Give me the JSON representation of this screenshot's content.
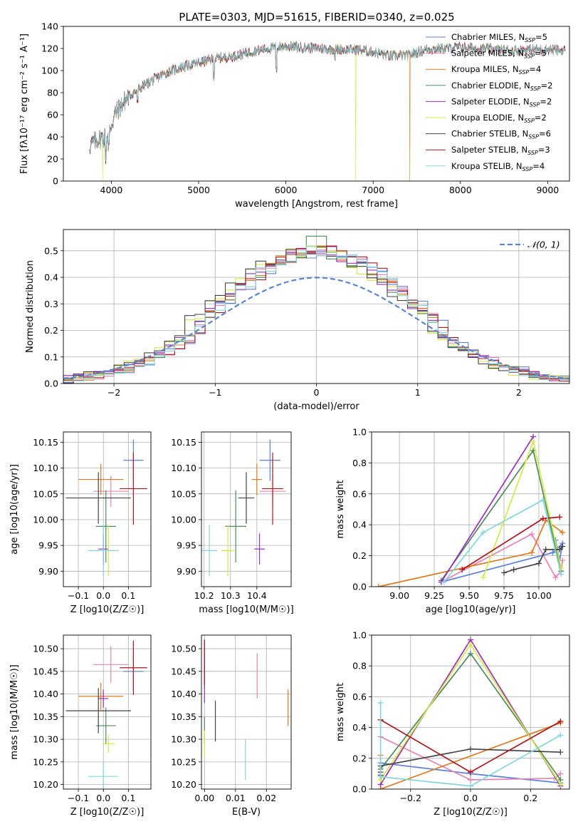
{
  "figure_title": "PLATE=0303, MJD=51615, FIBERID=0340, z=0.025",
  "colors": {
    "Chabrier MILES": "#5b7fdc",
    "Salpeter MILES": "#e882b4",
    "Kroupa MILES": "#e0781c",
    "Chabrier ELODIE": "#4e8a5b",
    "Salpeter ELODIE": "#9a2fc0",
    "Kroupa ELODIE": "#d2ea44",
    "Chabrier STELIB": "#444444",
    "Salpeter STELIB": "#b0151d",
    "Kroupa STELIB": "#83d6dc"
  },
  "chart_data": [
    {
      "id": "spectrum",
      "type": "line",
      "title": "",
      "xlabel": "wavelength [Angstrom, rest frame]",
      "ylabel": "Flux [fλ10⁻¹⁷ erg cm⁻² s⁻¹ A⁻¹]",
      "xlim": [
        3450,
        9250
      ],
      "ylim": [
        0,
        140
      ],
      "xticks": [
        4000,
        5000,
        6000,
        7000,
        8000,
        9000
      ],
      "yticks": [
        0,
        20,
        40,
        60,
        80,
        100,
        120,
        140
      ],
      "grid": false,
      "legend_position": "upper-right",
      "legend": [
        "Chabrier MILES, N_SSP=5",
        "Salpeter MILES, N_SSP=5",
        "Kroupa MILES, N_SSP=4",
        "Chabrier ELODIE, N_SSP=2",
        "Salpeter ELODIE, N_SSP=2",
        "Kroupa ELODIE, N_SSP=2",
        "Chabrier STELIB, N_SSP=6",
        "Salpeter STELIB, N_SSP=3",
        "Kroupa STELIB, N_SSP=4"
      ],
      "continuum": {
        "x": [
          3750,
          3850,
          3950,
          4050,
          4200,
          4400,
          4600,
          4800,
          5000,
          5200,
          5400,
          5600,
          5800,
          6000,
          6200,
          6400,
          6600,
          6800,
          7000,
          7200,
          7400,
          7600,
          7800,
          8000,
          8200,
          8400,
          8600,
          8800,
          9000,
          9200
        ],
        "y": [
          32,
          38,
          40,
          62,
          77,
          88,
          97,
          103,
          107,
          111,
          113,
          117,
          120,
          122,
          121,
          120,
          119,
          119,
          117,
          113,
          114,
          119,
          120,
          121,
          120,
          119,
          118,
          119,
          119,
          118
        ]
      },
      "glitches": [
        {
          "series": "Kroupa ELODIE",
          "x": 3900,
          "y_min": 0
        },
        {
          "series": "Kroupa ELODIE",
          "x": 6800,
          "y_min": 0
        },
        {
          "series": "Kroupa MILES",
          "x": 7420,
          "y_min": 0
        }
      ]
    },
    {
      "id": "residuals",
      "type": "histogram",
      "xlabel": "(data-model)/error",
      "ylabel": "Normed distribution",
      "xlim": [
        -2.5,
        2.5
      ],
      "ylim": [
        0,
        0.58
      ],
      "xticks": [
        -2,
        -1,
        0,
        1,
        2
      ],
      "yticks": [
        0.0,
        0.1,
        0.2,
        0.3,
        0.4,
        0.5
      ],
      "grid": true,
      "legend": "𝒩(0, 1)",
      "legend_position": "upper-right",
      "reference": {
        "name": "N(0,1)",
        "mean": 0,
        "sd": 1,
        "style": "dashed",
        "color": "#5a86cc"
      },
      "bin_width": 0.1,
      "bin_start": -2.5
    },
    {
      "id": "age_vs_Z",
      "type": "errorbar",
      "xlabel": "Z [log10(Z/Z☉)]",
      "ylabel": "age  [log10(age/yr)]",
      "xlim": [
        -0.16,
        0.19
      ],
      "ylim": [
        9.87,
        10.17
      ],
      "xticks": [
        -0.1,
        0.0,
        0.1
      ],
      "yticks": [
        9.9,
        9.95,
        10.0,
        10.05,
        10.1,
        10.15
      ],
      "grid": true,
      "points": [
        {
          "series": "Chabrier MILES",
          "x": 0.12,
          "xerr": 0.04,
          "y": 10.115,
          "yerr": 0.04
        },
        {
          "series": "Salpeter MILES",
          "x": 0.03,
          "xerr": 0.07,
          "y": 10.055,
          "yerr": 0.03
        },
        {
          "series": "Kroupa MILES",
          "x": -0.01,
          "xerr": 0.09,
          "y": 10.078,
          "yerr": 0.03
        },
        {
          "series": "Chabrier ELODIE",
          "x": 0.01,
          "xerr": 0.04,
          "y": 9.987,
          "yerr": 0.07
        },
        {
          "series": "Salpeter ELODIE",
          "x": 0.0,
          "xerr": 0.02,
          "y": 9.943,
          "yerr": 0.03
        },
        {
          "series": "Kroupa ELODIE",
          "x": 0.02,
          "xerr": 0.025,
          "y": 9.94,
          "yerr": 0.05
        },
        {
          "series": "Chabrier STELIB",
          "x": -0.02,
          "xerr": 0.13,
          "y": 10.042,
          "yerr": 0.05
        },
        {
          "series": "Salpeter STELIB",
          "x": 0.12,
          "xerr": 0.055,
          "y": 10.06,
          "yerr": 0.07
        },
        {
          "series": "Kroupa STELIB",
          "x": 0.0,
          "xerr": 0.06,
          "y": 9.94,
          "yerr": 0.05
        }
      ]
    },
    {
      "id": "age_vs_mass",
      "type": "errorbar",
      "xlabel": "mass [log10(M/M☉)]",
      "ylabel": "",
      "xlim": [
        10.19,
        10.53
      ],
      "ylim": [
        9.87,
        10.17
      ],
      "xticks": [
        10.2,
        10.3,
        10.4
      ],
      "yticks": [
        9.9,
        9.95,
        10.0,
        10.05,
        10.1,
        10.15
      ],
      "grid": true,
      "points": [
        {
          "series": "Chabrier MILES",
          "x": 10.45,
          "xerr": 0.04,
          "y": 10.115,
          "yerr": 0.04
        },
        {
          "series": "Salpeter MILES",
          "x": 10.46,
          "xerr": 0.05,
          "y": 10.055,
          "yerr": 0.03
        },
        {
          "series": "Kroupa MILES",
          "x": 10.4,
          "xerr": 0.02,
          "y": 10.078,
          "yerr": 0.03
        },
        {
          "series": "Chabrier ELODIE",
          "x": 10.32,
          "xerr": 0.04,
          "y": 9.987,
          "yerr": 0.07
        },
        {
          "series": "Salpeter ELODIE",
          "x": 10.41,
          "xerr": 0.02,
          "y": 9.943,
          "yerr": 0.03
        },
        {
          "series": "Kroupa ELODIE",
          "x": 10.29,
          "xerr": 0.025,
          "y": 9.94,
          "yerr": 0.05
        },
        {
          "series": "Chabrier STELIB",
          "x": 10.36,
          "xerr": 0.03,
          "y": 10.042,
          "yerr": 0.05
        },
        {
          "series": "Salpeter STELIB",
          "x": 10.46,
          "xerr": 0.04,
          "y": 10.06,
          "yerr": 0.07
        },
        {
          "series": "Kroupa STELIB",
          "x": 10.22,
          "xerr": 0.03,
          "y": 9.94,
          "yerr": 0.05
        }
      ]
    },
    {
      "id": "weight_vs_age",
      "type": "line",
      "xlabel": "age  [log10(age/yr)]",
      "ylabel": "mass weight",
      "xlim": [
        8.8,
        10.22
      ],
      "ylim": [
        0,
        1.0
      ],
      "xticks": [
        9.0,
        9.25,
        9.5,
        9.75,
        10.0
      ],
      "yticks": [
        0.0,
        0.2,
        0.4,
        0.6,
        0.8,
        1.0
      ],
      "grid": true,
      "series": [
        {
          "name": "Chabrier MILES",
          "x": [
            9.3,
            10.1,
            10.17,
            10.15,
            10.12
          ],
          "y": [
            0.03,
            0.22,
            0.28,
            0.17,
            0.3
          ]
        },
        {
          "name": "Salpeter MILES",
          "x": [
            9.3,
            9.95,
            10.12,
            10.16,
            10.17
          ],
          "y": [
            0.03,
            0.34,
            0.06,
            0.1,
            0.17
          ]
        },
        {
          "name": "Kroupa MILES",
          "x": [
            8.85,
            9.95,
            10.05,
            10.17
          ],
          "y": [
            0.0,
            0.22,
            0.43,
            0.35
          ]
        },
        {
          "name": "Chabrier ELODIE",
          "x": [
            9.3,
            9.96,
            10.16
          ],
          "y": [
            0.04,
            0.88,
            0.1
          ]
        },
        {
          "name": "Salpeter ELODIE",
          "x": [
            9.3,
            9.96
          ],
          "y": [
            0.03,
            0.97
          ]
        },
        {
          "name": "Kroupa ELODIE",
          "x": [
            9.6,
            9.96,
            10.16
          ],
          "y": [
            0.06,
            0.94,
            0.12
          ]
        },
        {
          "name": "Chabrier STELIB",
          "x": [
            9.75,
            9.82,
            10.0,
            10.05,
            10.15,
            10.17
          ],
          "y": [
            0.09,
            0.11,
            0.15,
            0.24,
            0.24,
            0.26
          ]
        },
        {
          "name": "Salpeter STELIB",
          "x": [
            9.45,
            10.03,
            10.15
          ],
          "y": [
            0.11,
            0.44,
            0.45
          ]
        },
        {
          "name": "Kroupa STELIB",
          "x": [
            9.32,
            9.6,
            10.03,
            10.16
          ],
          "y": [
            0.03,
            0.35,
            0.56,
            0.08
          ]
        }
      ]
    },
    {
      "id": "mass_vs_Z",
      "type": "errorbar",
      "xlabel": "Z [log10(Z/Z☉)]",
      "ylabel": "mass [log10(M/M☉)]",
      "xlim": [
        -0.16,
        0.19
      ],
      "ylim": [
        10.19,
        10.53
      ],
      "xticks": [
        -0.1,
        0.0,
        0.1
      ],
      "yticks": [
        10.2,
        10.25,
        10.3,
        10.35,
        10.4,
        10.45,
        10.5
      ],
      "grid": true,
      "points": [
        {
          "series": "Chabrier MILES",
          "x": 0.12,
          "xerr": 0.04,
          "y": 10.45,
          "yerr": 0.04
        },
        {
          "series": "Salpeter MILES",
          "x": 0.03,
          "xerr": 0.07,
          "y": 10.465,
          "yerr": 0.04
        },
        {
          "series": "Kroupa MILES",
          "x": -0.01,
          "xerr": 0.09,
          "y": 10.395,
          "yerr": 0.03
        },
        {
          "series": "Chabrier ELODIE",
          "x": 0.01,
          "xerr": 0.04,
          "y": 10.33,
          "yerr": 0.04
        },
        {
          "series": "Salpeter ELODIE",
          "x": 0.0,
          "xerr": 0.02,
          "y": 10.39,
          "yerr": 0.02
        },
        {
          "series": "Kroupa ELODIE",
          "x": 0.02,
          "xerr": 0.025,
          "y": 10.29,
          "yerr": 0.02
        },
        {
          "series": "Chabrier STELIB",
          "x": -0.02,
          "xerr": 0.13,
          "y": 10.363,
          "yerr": 0.05
        },
        {
          "series": "Salpeter STELIB",
          "x": 0.12,
          "xerr": 0.055,
          "y": 10.458,
          "yerr": 0.06
        },
        {
          "series": "Kroupa STELIB",
          "x": 0.0,
          "xerr": 0.06,
          "y": 10.218,
          "yerr": 0.03
        }
      ]
    },
    {
      "id": "mass_vs_ebv",
      "type": "errorbar",
      "xlabel": "E(B-V)",
      "ylabel": "",
      "xlim": [
        -0.001,
        0.028
      ],
      "ylim": [
        10.19,
        10.53
      ],
      "xticks": [
        0.0,
        0.01,
        0.02
      ],
      "yticks": [
        10.2,
        10.25,
        10.3,
        10.35,
        10.4,
        10.45,
        10.5
      ],
      "grid": true,
      "points": [
        {
          "series": "Chabrier MILES",
          "x": 0.0,
          "xerr": 0.0,
          "y": 10.45,
          "yerr": 0.04
        },
        {
          "series": "Salpeter MILES",
          "x": 0.017,
          "xerr": 0.0,
          "y": 10.44,
          "yerr": 0.05
        },
        {
          "series": "Kroupa MILES",
          "x": 0.027,
          "xerr": 0.0,
          "y": 10.37,
          "yerr": 0.04
        },
        {
          "series": "Chabrier ELODIE",
          "x": 0.0,
          "xerr": 0.0,
          "y": 10.32,
          "yerr": 0.03
        },
        {
          "series": "Salpeter ELODIE",
          "x": 0.0,
          "xerr": 0.0,
          "y": 10.45,
          "yerr": 0.07
        },
        {
          "series": "Kroupa ELODIE",
          "x": 0.0,
          "xerr": 0.0,
          "y": 10.29,
          "yerr": 0.03
        },
        {
          "series": "Chabrier STELIB",
          "x": 0.0035,
          "xerr": 0.0,
          "y": 10.34,
          "yerr": 0.045
        },
        {
          "series": "Salpeter STELIB",
          "x": 0.0,
          "xerr": 0.0,
          "y": 10.47,
          "yerr": 0.05
        },
        {
          "series": "Kroupa STELIB",
          "x": 0.0132,
          "xerr": 0.0,
          "y": 10.255,
          "yerr": 0.045
        }
      ]
    },
    {
      "id": "weight_vs_Z",
      "type": "line",
      "xlabel": "Z [log10(Z/Z☉)]",
      "ylabel": "mass weight",
      "xlim": [
        -0.33,
        0.33
      ],
      "ylim": [
        0,
        1.0
      ],
      "xticks": [
        -0.2,
        0.0,
        0.2
      ],
      "yticks": [
        0.0,
        0.2,
        0.4,
        0.6,
        0.8,
        1.0
      ],
      "grid": true,
      "series": [
        {
          "name": "Chabrier MILES",
          "x": [
            -0.3,
            0.0,
            0.3
          ],
          "y": [
            0.17,
            0.1,
            0.04
          ]
        },
        {
          "name": "Salpeter MILES",
          "x": [
            -0.3,
            0.0,
            0.28,
            0.3
          ],
          "y": [
            0.34,
            0.06,
            0.07,
            0.1
          ]
        },
        {
          "name": "Kroupa MILES",
          "x": [
            -0.3,
            -0.3,
            0.3
          ],
          "y": [
            0.22,
            0.0,
            0.43
          ]
        },
        {
          "name": "Chabrier ELODIE",
          "x": [
            -0.3,
            0.0,
            0.3
          ],
          "y": [
            0.13,
            0.88,
            0.06
          ]
        },
        {
          "name": "Salpeter ELODIE",
          "x": [
            -0.3,
            0.0,
            0.3
          ],
          "y": [
            0.03,
            0.97,
            0.02
          ]
        },
        {
          "name": "Kroupa ELODIE",
          "x": [
            -0.3,
            0.0,
            0.3
          ],
          "y": [
            0.06,
            0.94,
            0.03
          ]
        },
        {
          "name": "Chabrier STELIB",
          "x": [
            -0.3,
            -0.3,
            -0.3,
            0.0,
            0.3
          ],
          "y": [
            0.09,
            0.11,
            0.15,
            0.26,
            0.24
          ]
        },
        {
          "name": "Salpeter STELIB",
          "x": [
            -0.3,
            0.0,
            0.3
          ],
          "y": [
            0.45,
            0.11,
            0.44
          ]
        },
        {
          "name": "Kroupa STELIB",
          "x": [
            -0.3,
            -0.3,
            0.0,
            0.3
          ],
          "y": [
            0.56,
            0.08,
            0.02,
            0.35
          ]
        }
      ]
    }
  ]
}
